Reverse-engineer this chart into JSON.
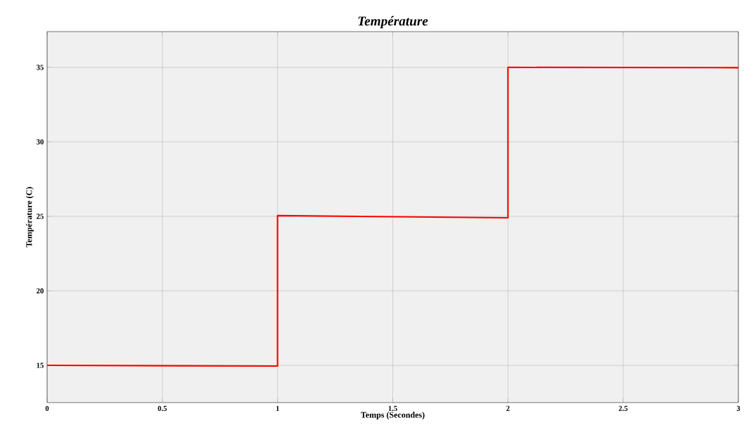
{
  "chart_data": {
    "type": "line",
    "title": "Température",
    "xlabel": "Temps (Secondes)",
    "ylabel": "Température (C)",
    "x": [
      0,
      1,
      1,
      2,
      2,
      3
    ],
    "series": [
      {
        "color": "#ff0000",
        "values": [
          15,
          14.95,
          25.05,
          24.9,
          35,
          34.98
        ]
      }
    ],
    "xlim": [
      0,
      3
    ],
    "ylim": [
      12.5,
      37.4
    ],
    "xticks": [
      0,
      0.5,
      1,
      1.5,
      2,
      2.5,
      3
    ],
    "yticks": [
      15,
      20,
      25,
      30,
      35
    ],
    "grid": true,
    "line_style": "solid",
    "marker": "none"
  }
}
